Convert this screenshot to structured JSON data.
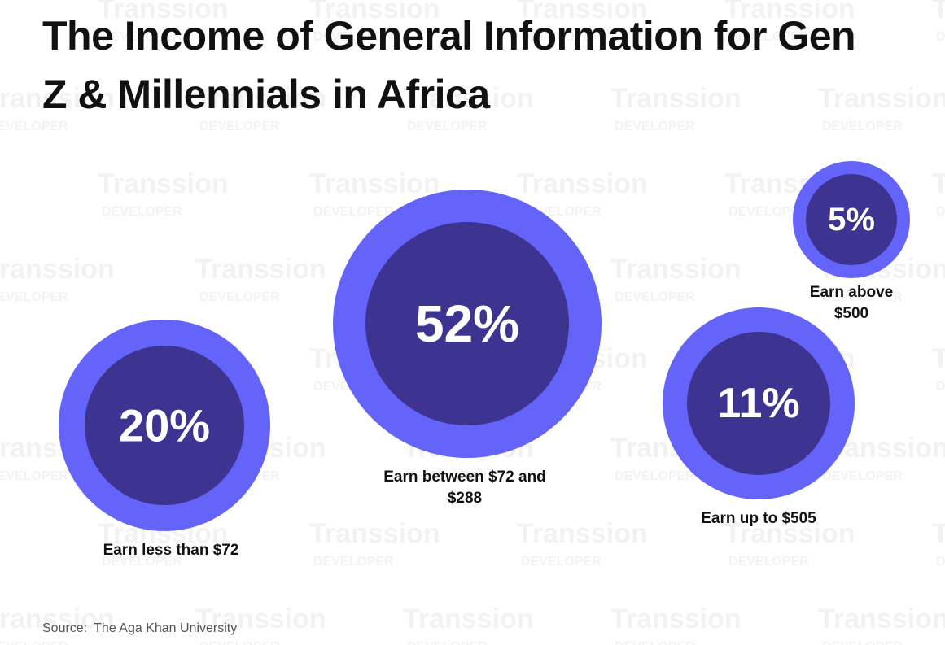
{
  "chart_data": {
    "type": "bubble",
    "title": "The Income of General Information for Gen Z & Millennials in Africa",
    "categories": [
      "Earn less than $72",
      "Earn between $72 and $288",
      "Earn up to $505",
      "Earn above $500"
    ],
    "values": [
      20,
      52,
      11,
      5
    ],
    "value_labels": [
      "20%",
      "52%",
      "11%",
      "5%"
    ],
    "outer_color": "#6464fa",
    "inner_color": "#3d3391"
  },
  "source": {
    "label": "Source:",
    "text": "The Aga Khan University"
  },
  "watermark": {
    "brand": "Transsion",
    "sub": "DEVELOPER"
  }
}
